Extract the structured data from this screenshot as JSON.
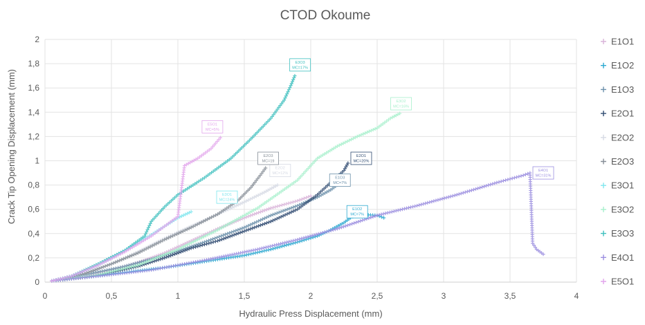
{
  "chart_data": {
    "type": "scatter",
    "title": "CTOD Okoume",
    "xlabel": "Hydraulic Press Displacement (mm)",
    "ylabel": "Crack Tip Opening Displacement (mm)",
    "xlim": [
      0,
      4
    ],
    "ylim": [
      0,
      2
    ],
    "x_ticks": [
      0,
      0.5,
      1,
      1.5,
      2,
      2.5,
      3,
      3.5,
      4
    ],
    "x_tick_labels": [
      "0",
      "0,5",
      "1",
      "1,5",
      "2",
      "2,5",
      "3",
      "3,5",
      "4"
    ],
    "y_ticks": [
      0,
      0.2,
      0.4,
      0.6,
      0.8,
      1,
      1.2,
      1.4,
      1.6,
      1.8,
      2
    ],
    "y_tick_labels": [
      "0",
      "0,2",
      "0,4",
      "0,6",
      "0,8",
      "1",
      "1,2",
      "1,4",
      "1,6",
      "1,8",
      "2"
    ],
    "grid": true,
    "legend_position": "right",
    "marker": "+",
    "series": [
      {
        "name": "E1O1",
        "color": "#d9b3d9",
        "annotation": "",
        "points": [
          [
            0.05,
            0.01
          ],
          [
            0.3,
            0.05
          ],
          [
            0.5,
            0.1
          ],
          [
            0.7,
            0.16
          ],
          [
            0.9,
            0.24
          ],
          [
            1.1,
            0.34
          ],
          [
            1.3,
            0.44
          ],
          [
            1.5,
            0.53
          ],
          [
            1.7,
            0.61
          ],
          [
            1.9,
            0.67
          ],
          [
            2.0,
            0.71
          ]
        ]
      },
      {
        "name": "E1O2",
        "color": "#2aa8d0",
        "annotation": "E1O2\nMC=7%",
        "label_pos": [
          2.35,
          0.58
        ],
        "points": [
          [
            0.05,
            0.01
          ],
          [
            0.3,
            0.04
          ],
          [
            0.6,
            0.08
          ],
          [
            0.9,
            0.12
          ],
          [
            1.2,
            0.17
          ],
          [
            1.5,
            0.22
          ],
          [
            1.7,
            0.27
          ],
          [
            1.9,
            0.33
          ],
          [
            2.05,
            0.38
          ],
          [
            2.15,
            0.43
          ],
          [
            2.25,
            0.49
          ],
          [
            2.3,
            0.53
          ],
          [
            2.35,
            0.56
          ],
          [
            2.5,
            0.55
          ],
          [
            2.55,
            0.53
          ]
        ]
      },
      {
        "name": "E1O3",
        "color": "#6a8faa",
        "annotation": "E1O3\nMC=7%",
        "label_pos": [
          2.22,
          0.84
        ],
        "points": [
          [
            0.05,
            0.01
          ],
          [
            0.3,
            0.06
          ],
          [
            0.6,
            0.13
          ],
          [
            0.9,
            0.22
          ],
          [
            1.2,
            0.33
          ],
          [
            1.5,
            0.45
          ],
          [
            1.7,
            0.55
          ],
          [
            1.9,
            0.63
          ],
          [
            2.05,
            0.7
          ],
          [
            2.15,
            0.76
          ],
          [
            2.2,
            0.8
          ]
        ]
      },
      {
        "name": "E2O1",
        "color": "#2e4a70",
        "annotation": "E2O1\nMC=20%",
        "label_pos": [
          2.38,
          1.02
        ],
        "points": [
          [
            0.05,
            0.01
          ],
          [
            0.3,
            0.04
          ],
          [
            0.5,
            0.08
          ],
          [
            0.7,
            0.13
          ],
          [
            0.9,
            0.2
          ],
          [
            1.1,
            0.28
          ],
          [
            1.3,
            0.34
          ],
          [
            1.5,
            0.42
          ],
          [
            1.7,
            0.5
          ],
          [
            1.9,
            0.6
          ],
          [
            2.05,
            0.72
          ],
          [
            2.15,
            0.82
          ],
          [
            2.25,
            0.92
          ],
          [
            2.28,
            0.98
          ]
        ]
      },
      {
        "name": "E2O2",
        "color": "#d6dae4",
        "annotation": "E2O2\nMC=12%",
        "label_pos": [
          1.77,
          0.92
        ],
        "points": [
          [
            0.05,
            0.01
          ],
          [
            0.3,
            0.07
          ],
          [
            0.5,
            0.15
          ],
          [
            0.7,
            0.25
          ],
          [
            0.9,
            0.36
          ],
          [
            1.1,
            0.46
          ],
          [
            1.3,
            0.56
          ],
          [
            1.5,
            0.66
          ],
          [
            1.65,
            0.74
          ],
          [
            1.75,
            0.8
          ]
        ]
      },
      {
        "name": "E2O3",
        "color": "#858d96",
        "annotation": "E2O3\nMC=19",
        "label_pos": [
          1.68,
          1.02
        ],
        "points": [
          [
            0.05,
            0.01
          ],
          [
            0.3,
            0.07
          ],
          [
            0.5,
            0.15
          ],
          [
            0.7,
            0.24
          ],
          [
            0.9,
            0.35
          ],
          [
            1.1,
            0.45
          ],
          [
            1.3,
            0.56
          ],
          [
            1.45,
            0.67
          ],
          [
            1.55,
            0.78
          ],
          [
            1.62,
            0.88
          ],
          [
            1.66,
            0.94
          ]
        ]
      },
      {
        "name": "E3O1",
        "color": "#7fe6ee",
        "annotation": "E3O1\nMC=24%",
        "label_pos": [
          1.37,
          0.7
        ],
        "points": [
          [
            0.05,
            0.01
          ],
          [
            0.2,
            0.05
          ],
          [
            0.4,
            0.14
          ],
          [
            0.6,
            0.26
          ],
          [
            0.8,
            0.39
          ],
          [
            1.0,
            0.53
          ],
          [
            1.1,
            0.58
          ]
        ]
      },
      {
        "name": "E3O2",
        "color": "#a6f0cc",
        "annotation": "E3O2\nMC=16%",
        "label_pos": [
          2.68,
          1.47
        ],
        "points": [
          [
            0.05,
            0.01
          ],
          [
            0.4,
            0.06
          ],
          [
            0.7,
            0.14
          ],
          [
            1.0,
            0.27
          ],
          [
            1.3,
            0.43
          ],
          [
            1.6,
            0.61
          ],
          [
            1.9,
            0.84
          ],
          [
            2.05,
            1.02
          ],
          [
            2.2,
            1.12
          ],
          [
            2.35,
            1.2
          ],
          [
            2.5,
            1.27
          ],
          [
            2.6,
            1.35
          ],
          [
            2.67,
            1.39
          ]
        ]
      },
      {
        "name": "E3O3",
        "color": "#3cbfbe",
        "annotation": "E3O3\nMC=17%",
        "label_pos": [
          1.92,
          1.79
        ],
        "points": [
          [
            0.05,
            0.01
          ],
          [
            0.2,
            0.05
          ],
          [
            0.4,
            0.15
          ],
          [
            0.6,
            0.26
          ],
          [
            0.75,
            0.38
          ],
          [
            0.8,
            0.5
          ],
          [
            0.9,
            0.62
          ],
          [
            1.0,
            0.72
          ],
          [
            1.2,
            0.86
          ],
          [
            1.4,
            1.02
          ],
          [
            1.55,
            1.18
          ],
          [
            1.7,
            1.35
          ],
          [
            1.8,
            1.5
          ],
          [
            1.85,
            1.62
          ],
          [
            1.88,
            1.7
          ]
        ]
      },
      {
        "name": "E4O1",
        "color": "#9b8ee0",
        "annotation": "E4O1\nMC=31%",
        "label_pos": [
          3.75,
          0.9
        ],
        "points": [
          [
            0.05,
            0.01
          ],
          [
            0.4,
            0.05
          ],
          [
            0.8,
            0.1
          ],
          [
            1.2,
            0.18
          ],
          [
            1.6,
            0.27
          ],
          [
            1.9,
            0.35
          ],
          [
            2.2,
            0.44
          ],
          [
            2.5,
            0.55
          ],
          [
            2.8,
            0.63
          ],
          [
            3.1,
            0.72
          ],
          [
            3.4,
            0.82
          ],
          [
            3.6,
            0.88
          ],
          [
            3.65,
            0.9
          ],
          [
            3.67,
            0.32
          ],
          [
            3.7,
            0.27
          ],
          [
            3.75,
            0.23
          ]
        ]
      },
      {
        "name": "E5O1",
        "color": "#e2a4ec",
        "annotation": "E5O1\nMC=5%",
        "label_pos": [
          1.26,
          1.28
        ],
        "points": [
          [
            0.05,
            0.01
          ],
          [
            0.2,
            0.05
          ],
          [
            0.4,
            0.14
          ],
          [
            0.6,
            0.25
          ],
          [
            0.8,
            0.38
          ],
          [
            0.9,
            0.46
          ],
          [
            1.0,
            0.54
          ],
          [
            1.05,
            0.96
          ],
          [
            1.15,
            1.02
          ],
          [
            1.25,
            1.1
          ],
          [
            1.32,
            1.19
          ]
        ]
      }
    ]
  }
}
